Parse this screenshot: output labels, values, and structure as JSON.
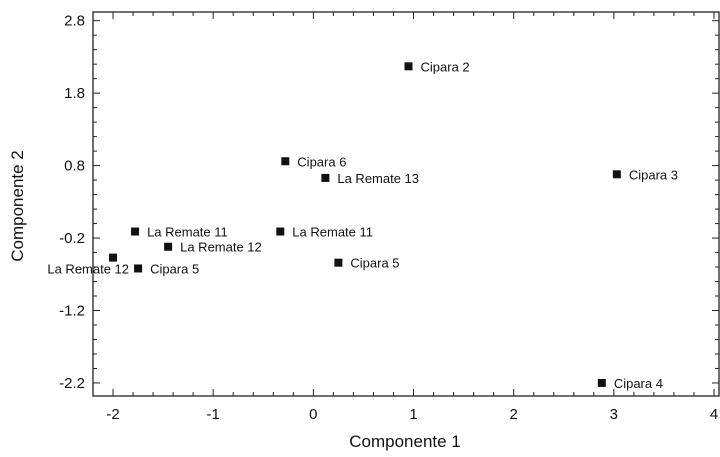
{
  "chart_data": {
    "type": "scatter",
    "xlabel": "Componente 1",
    "ylabel": "Componente 2",
    "xlim": [
      -2.2,
      4.05
    ],
    "ylim": [
      -2.38,
      2.92
    ],
    "xticks": [
      -2,
      -1,
      0,
      1,
      2,
      3,
      4
    ],
    "xtick_labels": [
      "-2",
      "-1",
      "0",
      "1",
      "2",
      "3",
      "4"
    ],
    "yticks": [
      -2.2,
      -1.2,
      -0.2,
      0.8,
      1.8,
      2.8
    ],
    "ytick_labels": [
      "-2.2",
      "-1.2",
      "-0.2",
      "0.8",
      "1.8",
      "2.8"
    ],
    "grid": false,
    "marker_color": "#111111",
    "points": [
      {
        "label": "Cipara 2",
        "x": 0.95,
        "y": 2.17,
        "label_side": "right"
      },
      {
        "label": "Cipara 6",
        "x": -0.28,
        "y": 0.86,
        "label_side": "right"
      },
      {
        "label": "La Remate 13",
        "x": 0.12,
        "y": 0.63,
        "label_side": "right"
      },
      {
        "label": "Cipara 3",
        "x": 3.03,
        "y": 0.68,
        "label_side": "right"
      },
      {
        "label": "La Remate 11",
        "x": -1.78,
        "y": -0.11,
        "label_side": "right"
      },
      {
        "label": "La Remate 11",
        "x": -0.33,
        "y": -0.11,
        "label_side": "right"
      },
      {
        "label": "La Remate 12",
        "x": -1.45,
        "y": -0.32,
        "label_side": "right"
      },
      {
        "label": "La Remate 12",
        "x": -2.0,
        "y": -0.47,
        "label_side": "below-left"
      },
      {
        "label": "Cipara 5",
        "x": -1.75,
        "y": -0.62,
        "label_side": "right"
      },
      {
        "label": "Cipara 5",
        "x": 0.25,
        "y": -0.54,
        "label_side": "right"
      },
      {
        "label": "Cipara 4",
        "x": 2.88,
        "y": -2.2,
        "label_side": "right"
      }
    ]
  }
}
